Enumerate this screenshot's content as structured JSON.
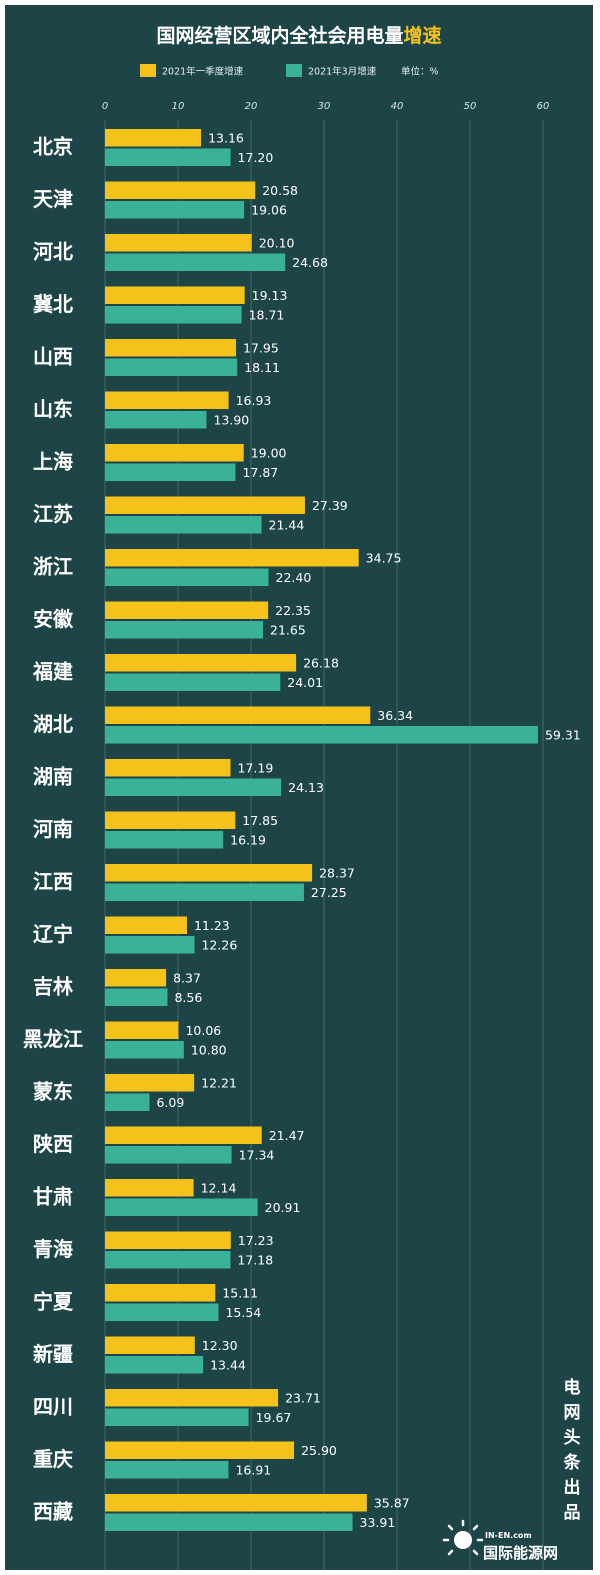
{
  "title": {
    "main": "国网经营区域内全社会用电量",
    "highlight": "增速"
  },
  "colors": {
    "background": "#1d4548",
    "q1": "#f5c21b",
    "march": "#3ab29a"
  },
  "legend": {
    "unit_label": "单位：%"
  },
  "credit": [
    "电",
    "网",
    "头",
    "条",
    "出",
    "品"
  ],
  "watermark": {
    "brand_small": "IN-EN.com",
    "brand_main": "国际能源网"
  },
  "chart_data": {
    "type": "bar",
    "orientation": "horizontal",
    "title": "国网经营区域内全社会用电量增速",
    "xlim": [
      0,
      60
    ],
    "xticks": [
      0,
      10,
      20,
      30,
      40,
      50,
      60
    ],
    "grid": true,
    "legend_position": "top",
    "categories": [
      "北京",
      "天津",
      "河北",
      "冀北",
      "山西",
      "山东",
      "上海",
      "江苏",
      "浙江",
      "安徽",
      "福建",
      "湖北",
      "湖南",
      "河南",
      "江西",
      "辽宁",
      "吉林",
      "黑龙江",
      "蒙东",
      "陕西",
      "甘肃",
      "青海",
      "宁夏",
      "新疆",
      "四川",
      "重庆",
      "西藏"
    ],
    "series": [
      {
        "name": "2021年一季度增速",
        "values": [
          13.16,
          20.58,
          20.1,
          19.13,
          17.95,
          16.93,
          19.0,
          27.39,
          34.75,
          22.35,
          26.18,
          36.34,
          17.19,
          17.85,
          28.37,
          11.23,
          8.37,
          10.06,
          12.21,
          21.47,
          12.14,
          17.23,
          15.11,
          12.3,
          23.71,
          25.9,
          35.87
        ]
      },
      {
        "name": "2021年3月增速",
        "values": [
          17.2,
          19.06,
          24.68,
          18.71,
          18.11,
          13.9,
          17.87,
          21.44,
          22.4,
          21.65,
          24.01,
          59.31,
          24.13,
          16.19,
          27.25,
          12.26,
          8.56,
          10.8,
          6.09,
          17.34,
          20.91,
          17.18,
          15.54,
          13.44,
          19.67,
          16.91,
          33.91
        ]
      }
    ]
  }
}
